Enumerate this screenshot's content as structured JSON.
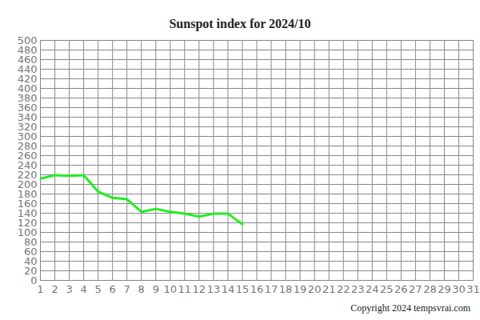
{
  "chart_data": {
    "type": "line",
    "title": "Sunspot index for 2024/10",
    "caption": "Copyright 2024 tempsvrai.com",
    "x": [
      1,
      2,
      3,
      4,
      5,
      6,
      7,
      8,
      9,
      10,
      11,
      12,
      13,
      14,
      15
    ],
    "values": [
      212,
      219,
      218,
      219,
      185,
      172,
      169,
      143,
      149,
      143,
      139,
      133,
      139,
      139,
      117
    ],
    "color": "#22ee22",
    "xlim": [
      1,
      31
    ],
    "xticks": [
      1,
      2,
      3,
      4,
      5,
      6,
      7,
      8,
      9,
      10,
      11,
      12,
      13,
      14,
      15,
      16,
      17,
      18,
      19,
      20,
      21,
      22,
      23,
      24,
      25,
      26,
      27,
      28,
      29,
      30,
      31
    ],
    "ylim": [
      0,
      500
    ],
    "yticks": [
      0,
      20,
      40,
      60,
      80,
      100,
      120,
      140,
      160,
      180,
      200,
      220,
      240,
      260,
      280,
      300,
      320,
      340,
      360,
      380,
      400,
      420,
      440,
      460,
      480,
      500
    ],
    "grid": true
  }
}
